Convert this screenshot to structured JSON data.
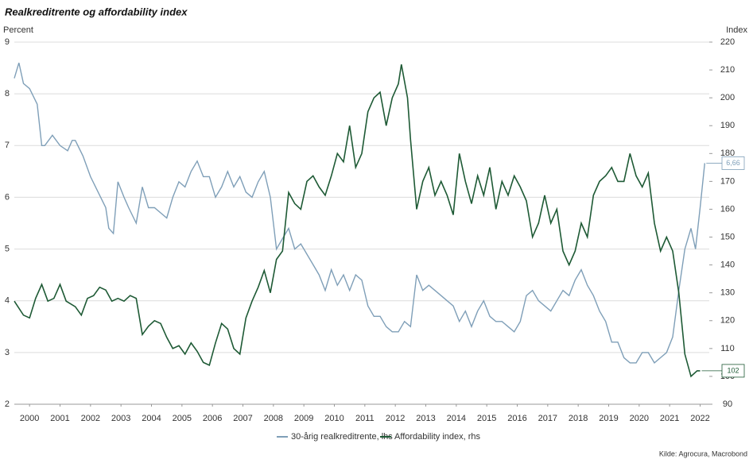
{
  "chart_data": {
    "type": "line",
    "title": "Realkreditrente og affordability index",
    "y_label": "Percent",
    "y2_label": "Index",
    "source": "Kilde: Agrocura, Macrobond",
    "xlim": [
      2000,
      2022.8
    ],
    "xticks": [
      {
        "value": 2000.5,
        "label": "2000"
      },
      {
        "value": 2001.5,
        "label": "2001"
      },
      {
        "value": 2002.5,
        "label": "2002"
      },
      {
        "value": 2003.5,
        "label": "2003"
      },
      {
        "value": 2004.5,
        "label": "2004"
      },
      {
        "value": 2005.5,
        "label": "2005"
      },
      {
        "value": 2006.5,
        "label": "2006"
      },
      {
        "value": 2007.5,
        "label": "2007"
      },
      {
        "value": 2008.5,
        "label": "2008"
      },
      {
        "value": 2009.5,
        "label": "2009"
      },
      {
        "value": 2010.5,
        "label": "2010"
      },
      {
        "value": 2011.5,
        "label": "2011"
      },
      {
        "value": 2012.5,
        "label": "2012"
      },
      {
        "value": 2013.5,
        "label": "2013"
      },
      {
        "value": 2014.5,
        "label": "2014"
      },
      {
        "value": 2015.5,
        "label": "2015"
      },
      {
        "value": 2016.5,
        "label": "2016"
      },
      {
        "value": 2017.5,
        "label": "2017"
      },
      {
        "value": 2018.5,
        "label": "2018"
      },
      {
        "value": 2019.5,
        "label": "2019"
      },
      {
        "value": 2020.5,
        "label": "2020"
      },
      {
        "value": 2021.5,
        "label": "2021"
      },
      {
        "value": 2022.5,
        "label": "2022"
      }
    ],
    "ylim": [
      2,
      9
    ],
    "yticks": [
      2,
      3,
      4,
      5,
      6,
      7,
      8,
      9
    ],
    "y2lim": [
      90,
      220
    ],
    "y2ticks": [
      90,
      100,
      110,
      120,
      130,
      140,
      150,
      160,
      170,
      180,
      190,
      200,
      210,
      220
    ],
    "grid": true,
    "legend": "bottom",
    "series": [
      {
        "name": "30-årig realkreditrente, lhs",
        "color": "#7f9fb8",
        "axis": "y",
        "end_label": "6,66",
        "x": [
          2000.0,
          2000.15,
          2000.3,
          2000.5,
          2000.75,
          2000.9,
          2001.0,
          2001.25,
          2001.5,
          2001.75,
          2001.9,
          2002.0,
          2002.25,
          2002.5,
          2002.75,
          2003.0,
          2003.1,
          2003.25,
          2003.4,
          2003.6,
          2003.75,
          2004.0,
          2004.2,
          2004.4,
          2004.6,
          2004.8,
          2005.0,
          2005.2,
          2005.4,
          2005.6,
          2005.8,
          2006.0,
          2006.2,
          2006.4,
          2006.6,
          2006.8,
          2007.0,
          2007.2,
          2007.4,
          2007.6,
          2007.8,
          2008.0,
          2008.2,
          2008.4,
          2008.6,
          2008.8,
          2009.0,
          2009.2,
          2009.4,
          2009.6,
          2009.8,
          2010.0,
          2010.2,
          2010.4,
          2010.6,
          2010.8,
          2011.0,
          2011.2,
          2011.4,
          2011.6,
          2011.8,
          2012.0,
          2012.2,
          2012.4,
          2012.6,
          2012.8,
          2013.0,
          2013.2,
          2013.4,
          2013.6,
          2013.8,
          2014.0,
          2014.2,
          2014.4,
          2014.6,
          2014.8,
          2015.0,
          2015.2,
          2015.4,
          2015.6,
          2015.8,
          2016.0,
          2016.2,
          2016.4,
          2016.6,
          2016.8,
          2017.0,
          2017.2,
          2017.4,
          2017.6,
          2017.8,
          2018.0,
          2018.2,
          2018.4,
          2018.6,
          2018.8,
          2019.0,
          2019.2,
          2019.4,
          2019.6,
          2019.8,
          2020.0,
          2020.2,
          2020.4,
          2020.6,
          2020.8,
          2021.0,
          2021.2,
          2021.4,
          2021.6,
          2021.8,
          2022.0,
          2022.2,
          2022.35,
          2022.5,
          2022.65
        ],
        "values": [
          8.3,
          8.6,
          8.2,
          8.1,
          7.8,
          7.0,
          7.0,
          7.2,
          7.0,
          6.9,
          7.1,
          7.1,
          6.8,
          6.4,
          6.1,
          5.8,
          5.4,
          5.3,
          6.3,
          6.0,
          5.8,
          5.5,
          6.2,
          5.8,
          5.8,
          5.7,
          5.6,
          6.0,
          6.3,
          6.2,
          6.5,
          6.7,
          6.4,
          6.4,
          6.0,
          6.2,
          6.5,
          6.2,
          6.4,
          6.1,
          6.0,
          6.3,
          6.5,
          6.0,
          5.0,
          5.2,
          5.4,
          5.0,
          5.1,
          4.9,
          4.7,
          4.5,
          4.2,
          4.6,
          4.3,
          4.5,
          4.2,
          4.5,
          4.4,
          3.9,
          3.7,
          3.7,
          3.5,
          3.4,
          3.4,
          3.6,
          3.5,
          4.5,
          4.2,
          4.3,
          4.2,
          4.1,
          4.0,
          3.9,
          3.6,
          3.8,
          3.5,
          3.8,
          4.0,
          3.7,
          3.6,
          3.6,
          3.5,
          3.4,
          3.6,
          4.1,
          4.2,
          4.0,
          3.9,
          3.8,
          4.0,
          4.2,
          4.1,
          4.4,
          4.6,
          4.3,
          4.1,
          3.8,
          3.6,
          3.2,
          3.2,
          2.9,
          2.8,
          2.8,
          3.0,
          3.0,
          2.8,
          2.9,
          3.0,
          3.3,
          4.2,
          5.0,
          5.4,
          5.0,
          5.8,
          6.66
        ]
      },
      {
        "name": "Affordability index, rhs",
        "color": "#1e5a35",
        "axis": "y2",
        "end_label": "102",
        "x": [
          2000.0,
          2000.3,
          2000.5,
          2000.7,
          2000.9,
          2001.1,
          2001.3,
          2001.5,
          2001.7,
          2002.0,
          2002.2,
          2002.4,
          2002.6,
          2002.8,
          2003.0,
          2003.2,
          2003.4,
          2003.6,
          2003.8,
          2004.0,
          2004.2,
          2004.4,
          2004.6,
          2004.8,
          2005.0,
          2005.2,
          2005.4,
          2005.6,
          2005.8,
          2006.0,
          2006.2,
          2006.4,
          2006.6,
          2006.8,
          2007.0,
          2007.2,
          2007.4,
          2007.6,
          2007.8,
          2008.0,
          2008.2,
          2008.4,
          2008.6,
          2008.8,
          2009.0,
          2009.2,
          2009.4,
          2009.6,
          2009.8,
          2010.0,
          2010.2,
          2010.4,
          2010.6,
          2010.8,
          2011.0,
          2011.2,
          2011.4,
          2011.6,
          2011.8,
          2012.0,
          2012.2,
          2012.4,
          2012.6,
          2012.7,
          2012.9,
          2013.0,
          2013.2,
          2013.4,
          2013.6,
          2013.8,
          2014.0,
          2014.2,
          2014.4,
          2014.6,
          2014.8,
          2015.0,
          2015.2,
          2015.4,
          2015.6,
          2015.8,
          2016.0,
          2016.2,
          2016.4,
          2016.6,
          2016.8,
          2017.0,
          2017.2,
          2017.4,
          2017.6,
          2017.8,
          2018.0,
          2018.2,
          2018.4,
          2018.6,
          2018.8,
          2019.0,
          2019.2,
          2019.4,
          2019.6,
          2019.8,
          2020.0,
          2020.2,
          2020.4,
          2020.6,
          2020.8,
          2021.0,
          2021.2,
          2021.4,
          2021.6,
          2021.8,
          2022.0,
          2022.2,
          2022.4,
          2022.5
        ],
        "values": [
          127,
          122,
          121,
          128,
          133,
          127,
          128,
          133,
          127,
          125,
          122,
          128,
          129,
          132,
          131,
          127,
          128,
          127,
          129,
          128,
          115,
          118,
          120,
          119,
          114,
          110,
          111,
          108,
          112,
          109,
          105,
          104,
          112,
          119,
          117,
          110,
          108,
          121,
          127,
          132,
          138,
          130,
          142,
          145,
          166,
          162,
          160,
          170,
          172,
          168,
          165,
          172,
          180,
          177,
          190,
          175,
          180,
          195,
          200,
          202,
          190,
          200,
          205,
          212,
          200,
          185,
          160,
          170,
          175,
          165,
          170,
          165,
          158,
          180,
          170,
          162,
          172,
          165,
          175,
          160,
          170,
          165,
          172,
          168,
          163,
          150,
          155,
          165,
          155,
          160,
          145,
          140,
          145,
          155,
          150,
          165,
          170,
          172,
          175,
          170,
          170,
          180,
          172,
          168,
          173,
          155,
          145,
          150,
          145,
          130,
          108,
          100,
          102,
          102
        ]
      }
    ]
  }
}
